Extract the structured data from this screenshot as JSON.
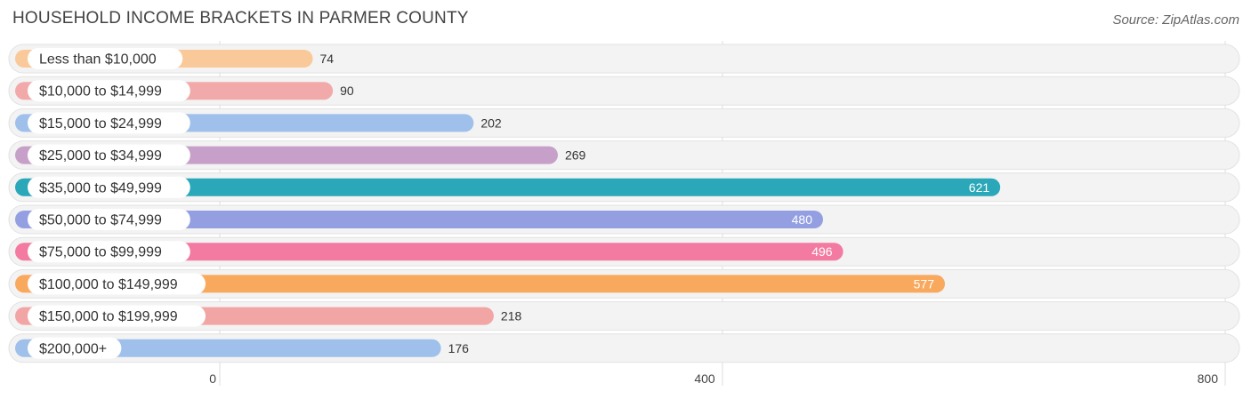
{
  "header": {
    "title": "HOUSEHOLD INCOME BRACKETS IN PARMER COUNTY",
    "source": "Source: ZipAtlas.com"
  },
  "chart_data": {
    "type": "bar",
    "orientation": "horizontal",
    "title": "HOUSEHOLD INCOME BRACKETS IN PARMER COUNTY",
    "categories": [
      "Less than $10,000",
      "$10,000 to $14,999",
      "$15,000 to $24,999",
      "$25,000 to $34,999",
      "$35,000 to $49,999",
      "$50,000 to $74,999",
      "$75,000 to $99,999",
      "$100,000 to $149,999",
      "$150,000 to $199,999",
      "$200,000+"
    ],
    "values": [
      74,
      90,
      202,
      269,
      621,
      480,
      496,
      577,
      218,
      176
    ],
    "value_labels": [
      "74",
      "90",
      "202",
      "269",
      "621",
      "480",
      "496",
      "577",
      "218",
      "176"
    ],
    "colors": [
      "#f9c99a",
      "#f2a9a9",
      "#9ec0ea",
      "#c6a0c8",
      "#2aa7b8",
      "#949fe2",
      "#f37aa0",
      "#f9a95e",
      "#f2a5a5",
      "#9ec0ea"
    ],
    "xlim": [
      0,
      800
    ],
    "ticks": [
      0,
      400,
      800
    ],
    "tick_labels": [
      "0",
      "400",
      "800"
    ],
    "grid": true,
    "legend": "none"
  }
}
